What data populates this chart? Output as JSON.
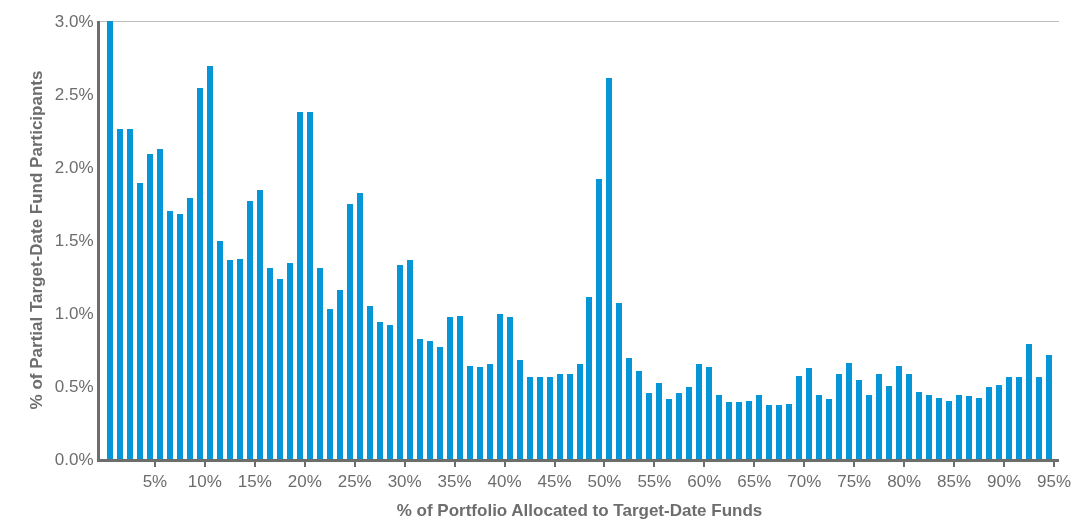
{
  "chart_data": {
    "type": "histogram",
    "xlabel": "% of Portfolio Allocated to Target-Date Funds",
    "ylabel": "% of Partial Target-Date Fund Participants",
    "color": "#0696d7",
    "bins": [
      0,
      1,
      2,
      3,
      4,
      5,
      6,
      7,
      8,
      9,
      10,
      11,
      12,
      13,
      14,
      15,
      16,
      17,
      18,
      19,
      20,
      21,
      22,
      23,
      24,
      25,
      26,
      27,
      28,
      29,
      30,
      31,
      32,
      33,
      34,
      35,
      36,
      37,
      38,
      39,
      40,
      41,
      42,
      43,
      44,
      45,
      46,
      47,
      48,
      49,
      50,
      51,
      52,
      53,
      54,
      55,
      56,
      57,
      58,
      59,
      60,
      61,
      62,
      63,
      64,
      65,
      66,
      67,
      68,
      69,
      70,
      71,
      72,
      73,
      74,
      75,
      76,
      77,
      78,
      79,
      80,
      81,
      82,
      83,
      84,
      85,
      86,
      87,
      88,
      89,
      90,
      91,
      92,
      93,
      94,
      95
    ],
    "values": [
      3.0,
      2.26,
      2.26,
      1.89,
      2.09,
      2.12,
      1.7,
      1.68,
      1.79,
      2.54,
      2.69,
      1.49,
      1.36,
      1.37,
      1.77,
      1.84,
      1.31,
      1.23,
      1.34,
      2.38,
      2.38,
      1.31,
      1.03,
      1.16,
      1.75,
      1.82,
      1.05,
      0.94,
      0.92,
      1.33,
      1.36,
      0.82,
      0.81,
      0.77,
      0.97,
      0.98,
      0.64,
      0.63,
      0.65,
      0.99,
      0.97,
      0.68,
      0.56,
      0.56,
      0.56,
      0.58,
      0.58,
      0.65,
      1.11,
      1.92,
      2.61,
      1.07,
      0.69,
      0.6,
      0.45,
      0.52,
      0.41,
      0.45,
      0.49,
      0.65,
      0.63,
      0.44,
      0.39,
      0.39,
      0.4,
      0.44,
      0.37,
      0.37,
      0.38,
      0.57,
      0.62,
      0.44,
      0.41,
      0.58,
      0.66,
      0.54,
      0.44,
      0.58,
      0.5,
      0.64,
      0.58,
      0.46,
      0.44,
      0.42,
      0.4,
      0.44,
      0.43,
      0.42,
      0.49,
      0.51,
      0.56,
      0.56,
      0.79,
      0.56,
      0.71
    ],
    "xlim": [
      -0.5,
      95.5
    ],
    "xticks": [
      {
        "value": 5,
        "label": "5%"
      },
      {
        "value": 10,
        "label": "10%"
      },
      {
        "value": 15,
        "label": "15%"
      },
      {
        "value": 20,
        "label": "20%"
      },
      {
        "value": 25,
        "label": "25%"
      },
      {
        "value": 30,
        "label": "30%"
      },
      {
        "value": 35,
        "label": "35%"
      },
      {
        "value": 40,
        "label": "40%"
      },
      {
        "value": 45,
        "label": "45%"
      },
      {
        "value": 50,
        "label": "50%"
      },
      {
        "value": 55,
        "label": "55%"
      },
      {
        "value": 60,
        "label": "60%"
      },
      {
        "value": 65,
        "label": "65%"
      },
      {
        "value": 70,
        "label": "70%"
      },
      {
        "value": 75,
        "label": "75%"
      },
      {
        "value": 80,
        "label": "80%"
      },
      {
        "value": 85,
        "label": "85%"
      },
      {
        "value": 90,
        "label": "90%"
      },
      {
        "value": 95,
        "label": "95%"
      }
    ],
    "ylim": [
      0,
      3.0
    ],
    "yticks": [
      {
        "value": 0,
        "label": "0.0%"
      },
      {
        "value": 0.5,
        "label": "0.5%"
      },
      {
        "value": 1.0,
        "label": "1.0%"
      },
      {
        "value": 1.5,
        "label": "1.5%"
      },
      {
        "value": 2.0,
        "label": "2.0%"
      },
      {
        "value": 2.5,
        "label": "2.5%"
      },
      {
        "value": 3.0,
        "label": "3.0%"
      }
    ],
    "ref_lines": [
      {
        "axis": "y",
        "value": 3.0,
        "color": "#a8a8a8"
      }
    ],
    "grid": false
  }
}
